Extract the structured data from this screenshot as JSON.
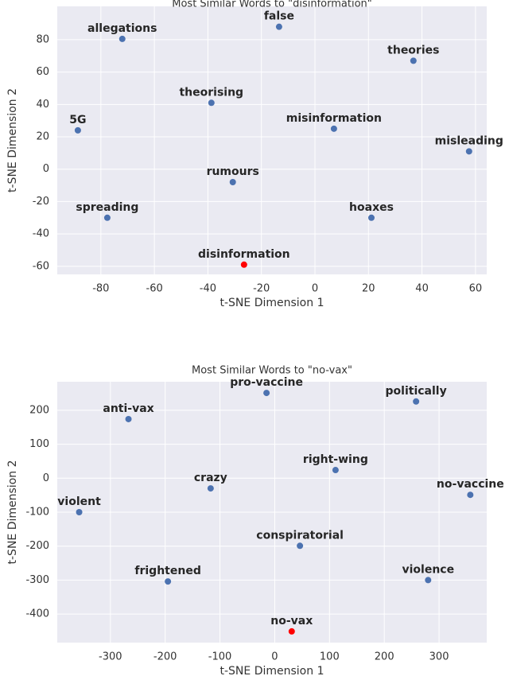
{
  "chart_data": [
    {
      "type": "scatter",
      "title": "Most Similar Words to \"disinformation\"",
      "x_label": "t-SNE Dimension 1",
      "y_label": "t-SNE Dimension 2",
      "labels": [
        "allegations",
        "false",
        "theories",
        "theorising",
        "5G",
        "misinformation",
        "misleading",
        "rumours",
        "spreading",
        "hoaxes",
        "disinformation"
      ],
      "x": [
        -72,
        -13.4,
        36.8,
        -38.7,
        -88.6,
        7.1,
        57.6,
        -30.7,
        -77.6,
        21.1,
        -26.5
      ],
      "y": [
        80.5,
        88,
        67,
        41,
        24,
        25,
        11,
        -8,
        -30,
        -30,
        -59
      ],
      "colors": [
        "#4c72b0",
        "#4c72b0",
        "#4c72b0",
        "#4c72b0",
        "#4c72b0",
        "#4c72b0",
        "#4c72b0",
        "#4c72b0",
        "#4c72b0",
        "#4c72b0",
        "#ff0000"
      ],
      "xlim": [
        -96.3,
        64.2
      ],
      "ylim": [
        -65,
        100.6
      ],
      "xticks": [
        -80,
        -60,
        -40,
        -20,
        0,
        20,
        40,
        60
      ],
      "yticks": [
        -60,
        -40,
        -20,
        0,
        20,
        40,
        60,
        80
      ],
      "grid": true
    },
    {
      "type": "scatter",
      "title": "Most Similar Words to \"no-vax\"",
      "x_label": "t-SNE Dimension 1",
      "y_label": "t-SNE Dimension 2",
      "labels": [
        "pro-vaccine",
        "politically",
        "anti-vax",
        "right-wing",
        "crazy",
        "no-vaccine",
        "violent",
        "conspiratorial",
        "frightened",
        "violence",
        "no-vax"
      ],
      "x": [
        -15,
        258,
        -267,
        111,
        -117,
        357,
        -357,
        46,
        -195,
        280,
        31
      ],
      "y": [
        251,
        226,
        174,
        24,
        -30,
        -49,
        -100,
        -199,
        -304,
        -300,
        -451
      ],
      "colors": [
        "#4c72b0",
        "#4c72b0",
        "#4c72b0",
        "#4c72b0",
        "#4c72b0",
        "#4c72b0",
        "#4c72b0",
        "#4c72b0",
        "#4c72b0",
        "#4c72b0",
        "#ff0000"
      ],
      "xlim": [
        -397,
        387
      ],
      "ylim": [
        -484,
        284
      ],
      "xticks": [
        -300,
        -200,
        -100,
        0,
        100,
        200,
        300
      ],
      "yticks": [
        -400,
        -300,
        -200,
        -100,
        0,
        100,
        200
      ],
      "grid": true
    }
  ]
}
